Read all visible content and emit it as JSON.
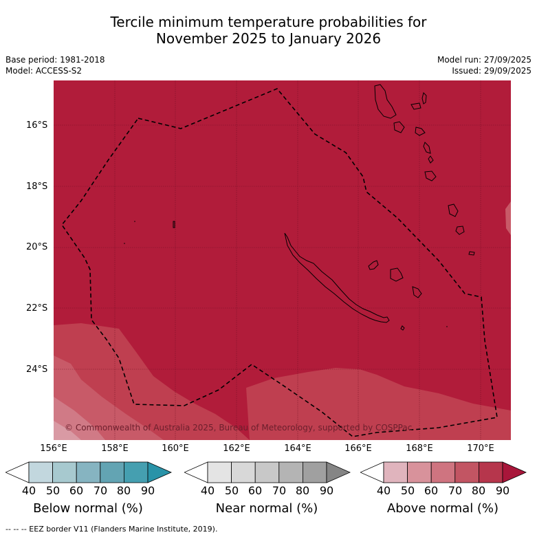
{
  "header": {
    "title_line1": "Tercile minimum temperature probabilities for",
    "title_line2": "November 2025 to January 2026"
  },
  "meta": {
    "base_period": "Base period: 1981-2018",
    "model": "Model: ACCESS-S2",
    "model_run": "Model run: 27/09/2025",
    "issued": "Issued: 29/09/2025"
  },
  "map": {
    "lat_labels": [
      "16°S",
      "18°S",
      "20°S",
      "22°S",
      "24°S"
    ],
    "lon_labels": [
      "156°E",
      "158°E",
      "160°E",
      "162°E",
      "164°E",
      "166°E",
      "168°E",
      "170°E"
    ],
    "copyright": "© Commonwealth of Australia 2025, Bureau of Meteorology, supported by COSPPac",
    "colors": {
      "above_80_90": "#b11c3a",
      "above_70_80": "#c0414f",
      "above_60_70": "#cf7480",
      "above_50_60": "#d99aa4"
    }
  },
  "legend": {
    "tick_values": [
      "40",
      "50",
      "60",
      "70",
      "80",
      "90"
    ],
    "bars": [
      {
        "label": "Below normal (%)",
        "colors": [
          "#ffffff",
          "#c2d7de",
          "#a7c9cf",
          "#86b4c1",
          "#63a4b3",
          "#459fb0",
          "#2993a8"
        ]
      },
      {
        "label": "Near normal (%)",
        "colors": [
          "#ffffff",
          "#e4e4e4",
          "#d8d8d8",
          "#c8c8c8",
          "#b4b4b4",
          "#a0a0a0",
          "#858585"
        ]
      },
      {
        "label": "Above normal (%)",
        "colors": [
          "#ffffff",
          "#e0b4bd",
          "#d8929b",
          "#cf7480",
          "#c25563",
          "#b6364c",
          "#a8163a"
        ]
      }
    ]
  },
  "footer": {
    "eez_note": "--  --  -- EEZ border V11 (Flanders Marine Institute, 2019)."
  }
}
